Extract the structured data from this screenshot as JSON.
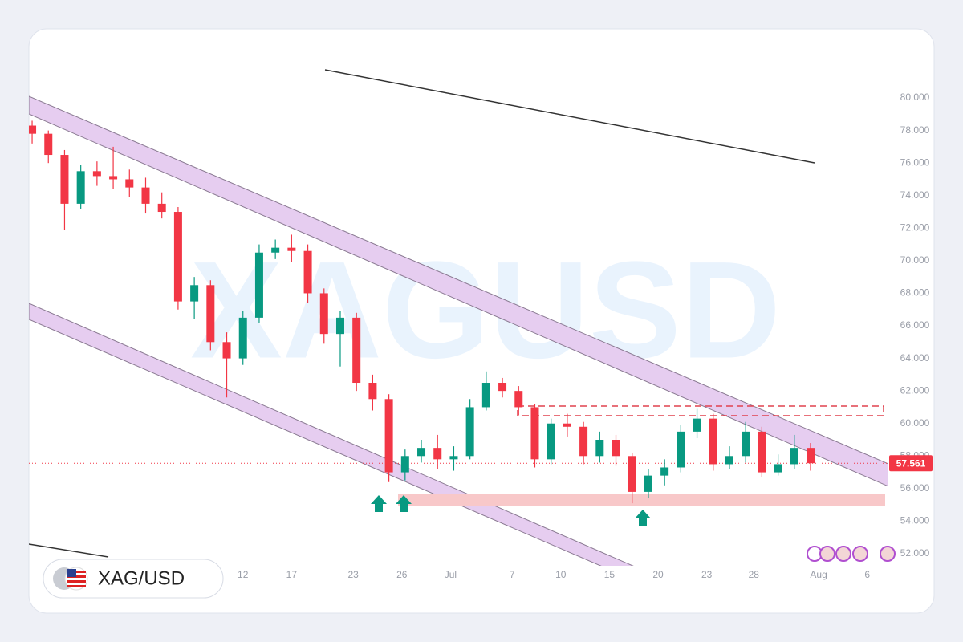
{
  "chart_data": {
    "type": "candlestick",
    "watermark": "XAGUSD",
    "symbol": "XAG/USD",
    "x": [
      -13,
      -12,
      -11,
      -10,
      -9,
      -8,
      -7,
      -6,
      -5,
      -4,
      -3,
      -2,
      -1,
      0,
      1,
      2,
      3,
      4,
      5,
      6,
      7,
      8,
      9,
      10,
      11,
      12,
      13,
      14,
      15,
      16,
      17,
      18,
      19,
      20,
      21,
      22,
      23,
      24,
      25,
      26,
      27,
      28,
      29,
      30,
      31,
      32,
      33,
      34,
      35
    ],
    "series": [
      {
        "open": [
          78.3,
          77.8,
          76.5,
          73.5,
          75.5,
          75.2,
          75.0,
          74.5,
          73.5,
          73.0,
          67.5,
          68.5,
          65.0,
          64.0,
          66.5,
          70.5,
          70.8,
          70.6,
          68.0,
          65.5,
          66.5,
          62.5,
          61.5,
          57.0,
          58.0,
          58.5,
          57.8,
          58.0,
          61.0,
          62.5,
          62.0,
          61.0,
          57.8,
          60.0,
          59.8,
          58.0,
          59.0,
          58.0,
          55.8,
          56.8,
          57.3,
          59.5,
          60.3,
          57.5,
          58.0,
          59.5,
          57.0,
          57.5,
          58.5
        ],
        "high": [
          78.6,
          78.0,
          76.8,
          75.9,
          76.1,
          77.0,
          75.6,
          75.1,
          74.2,
          73.3,
          69.0,
          68.8,
          65.6,
          66.9,
          71.0,
          71.3,
          71.6,
          71.0,
          68.3,
          66.9,
          66.8,
          63.0,
          61.8,
          58.4,
          59.0,
          59.3,
          58.6,
          61.5,
          63.2,
          62.8,
          62.3,
          61.2,
          60.3,
          60.6,
          60.1,
          59.5,
          59.3,
          58.2,
          57.2,
          57.8,
          59.9,
          60.9,
          60.6,
          58.6,
          60.1,
          59.8,
          58.1,
          59.3,
          58.8
        ],
        "low": [
          77.2,
          76.0,
          71.9,
          73.2,
          74.6,
          74.4,
          73.9,
          72.9,
          72.6,
          67.0,
          66.4,
          64.5,
          61.6,
          63.6,
          66.2,
          70.1,
          69.9,
          67.4,
          64.9,
          63.5,
          62.0,
          60.8,
          56.4,
          56.5,
          57.6,
          57.2,
          57.1,
          57.8,
          60.8,
          61.6,
          60.5,
          57.3,
          57.5,
          59.2,
          57.5,
          57.6,
          57.4,
          55.1,
          55.4,
          56.2,
          57.0,
          59.1,
          57.1,
          57.2,
          57.6,
          56.7,
          56.8,
          57.2,
          57.1
        ],
        "close": [
          77.8,
          76.5,
          73.5,
          75.5,
          75.2,
          75.0,
          74.5,
          73.5,
          73.0,
          67.5,
          68.5,
          65.0,
          64.0,
          66.5,
          70.5,
          70.8,
          70.6,
          68.0,
          65.5,
          66.5,
          62.5,
          61.5,
          57.0,
          58.0,
          58.5,
          57.8,
          58.0,
          61.0,
          62.5,
          62.0,
          61.0,
          57.8,
          60.0,
          59.8,
          58.0,
          59.0,
          58.0,
          55.8,
          56.8,
          57.3,
          59.5,
          60.3,
          57.5,
          58.0,
          59.5,
          57.0,
          57.5,
          58.5,
          57.561
        ],
        "up_color": "#089981",
        "down_color": "#f23645"
      }
    ],
    "xlim": [
      -13.2,
      39.8
    ],
    "xticks": [
      {
        "value": 0,
        "label": "12"
      },
      {
        "value": 3.0,
        "label": "17"
      },
      {
        "value": 6.8,
        "label": "23"
      },
      {
        "value": 9.8,
        "label": "26"
      },
      {
        "value": 12.8,
        "label": "Jul"
      },
      {
        "value": 16.6,
        "label": "7"
      },
      {
        "value": 19.6,
        "label": "10"
      },
      {
        "value": 22.6,
        "label": "15"
      },
      {
        "value": 25.6,
        "label": "20"
      },
      {
        "value": 28.6,
        "label": "23"
      },
      {
        "value": 31.5,
        "label": "28"
      },
      {
        "value": 35.5,
        "label": "Aug"
      },
      {
        "value": 38.5,
        "label": "6"
      }
    ],
    "ylim": [
      51.26,
      81.58
    ],
    "yticks": [
      {
        "value": 52,
        "label": "52.000"
      },
      {
        "value": 54,
        "label": "54.000"
      },
      {
        "value": 56,
        "label": "56.000"
      },
      {
        "value": 58,
        "label": "58.000"
      },
      {
        "value": 60,
        "label": "60.000"
      },
      {
        "value": 62,
        "label": "62.000"
      },
      {
        "value": 64,
        "label": "64.000"
      },
      {
        "value": 66,
        "label": "66.000"
      },
      {
        "value": 68,
        "label": "68.000"
      },
      {
        "value": 70,
        "label": "70.000"
      },
      {
        "value": 72,
        "label": "72.000"
      },
      {
        "value": 74,
        "label": "74.000"
      },
      {
        "value": 76,
        "label": "76.000"
      },
      {
        "value": 78,
        "label": "78.000"
      },
      {
        "value": 80,
        "label": "80.000"
      }
    ],
    "last_price": {
      "value": 57.561,
      "label": "57.561"
    }
  }
}
